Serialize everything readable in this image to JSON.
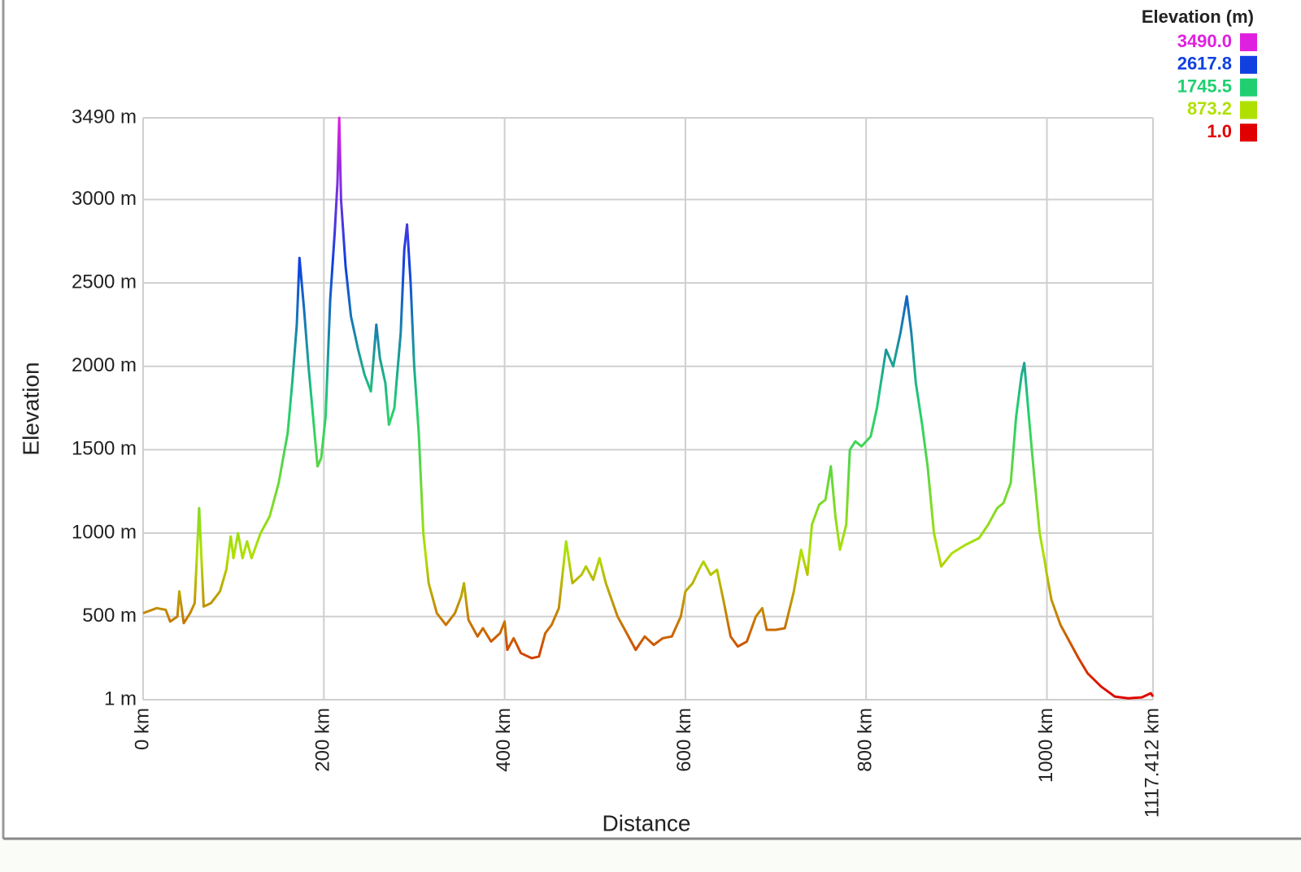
{
  "chart_data": {
    "type": "line",
    "x_label": "Distance",
    "y_label": "Elevation",
    "xlim": [
      0,
      1117.412
    ],
    "ylim": [
      1,
      3490
    ],
    "xticks": [
      {
        "value": 0,
        "label": "0 km"
      },
      {
        "value": 200,
        "label": "200 km"
      },
      {
        "value": 400,
        "label": "400 km"
      },
      {
        "value": 600,
        "label": "600 km"
      },
      {
        "value": 800,
        "label": "800 km"
      },
      {
        "value": 1000,
        "label": "1000 km"
      },
      {
        "value": 1117.412,
        "label": "1117.412 km"
      }
    ],
    "yticks": [
      {
        "value": 1,
        "label": "1 m"
      },
      {
        "value": 500,
        "label": "500 m"
      },
      {
        "value": 1000,
        "label": "1000 m"
      },
      {
        "value": 1500,
        "label": "1500 m"
      },
      {
        "value": 2000,
        "label": "2000 m"
      },
      {
        "value": 2500,
        "label": "2500 m"
      },
      {
        "value": 3000,
        "label": "3000 m"
      },
      {
        "value": 3490,
        "label": "3490 m"
      }
    ],
    "grid": true,
    "legend": {
      "title": "Elevation (m)",
      "position": "top-right",
      "entries": [
        {
          "value": 3490,
          "label": "3490.0",
          "color": "#e020e0"
        },
        {
          "value": 2617.8,
          "label": "2617.8",
          "color": "#1040e0"
        },
        {
          "value": 1745.5,
          "label": "1745.5",
          "color": "#20d070"
        },
        {
          "value": 873.2,
          "label": "873.2",
          "color": "#b0e000"
        },
        {
          "value": 1,
          "label": "1.0",
          "color": "#e00000"
        }
      ]
    },
    "x": [
      0,
      15,
      25,
      30,
      38,
      40,
      45,
      52,
      57,
      62,
      67,
      75,
      85,
      92,
      97,
      100,
      105,
      110,
      115,
      120,
      130,
      140,
      150,
      160,
      165,
      170,
      173,
      178,
      183,
      188,
      193,
      197,
      202,
      207,
      212,
      215,
      217,
      219,
      224,
      230,
      238,
      245,
      252,
      258,
      262,
      268,
      272,
      278,
      285,
      289,
      292,
      296,
      300,
      305,
      310,
      316,
      325,
      335,
      345,
      352,
      355,
      360,
      370,
      376,
      385,
      395,
      400,
      403,
      410,
      418,
      430,
      438,
      445,
      452,
      460,
      468,
      475,
      485,
      490,
      498,
      505,
      512,
      525,
      535,
      545,
      555,
      565,
      575,
      585,
      595,
      600,
      608,
      615,
      620,
      628,
      635,
      642,
      650,
      658,
      668,
      678,
      685,
      690,
      700,
      710,
      720,
      728,
      735,
      740,
      748,
      755,
      761,
      766,
      771,
      778,
      782,
      788,
      795,
      805,
      812,
      822,
      830,
      838,
      845,
      850,
      855,
      862,
      868,
      875,
      883,
      895,
      910,
      925,
      935,
      945,
      952,
      960,
      966,
      972,
      975,
      980,
      985,
      992,
      997,
      1000,
      1005,
      1015,
      1025,
      1035,
      1045,
      1060,
      1075,
      1090,
      1105,
      1115,
      1117.412
    ],
    "values": [
      520,
      550,
      540,
      470,
      500,
      650,
      460,
      520,
      580,
      1150,
      560,
      580,
      650,
      780,
      980,
      850,
      1000,
      850,
      950,
      850,
      1000,
      1100,
      1300,
      1600,
      1900,
      2250,
      2650,
      2350,
      2000,
      1700,
      1400,
      1450,
      1700,
      2400,
      2800,
      3100,
      3490,
      3000,
      2600,
      2300,
      2100,
      1950,
      1850,
      2250,
      2050,
      1900,
      1650,
      1750,
      2200,
      2700,
      2850,
      2500,
      2000,
      1600,
      1000,
      700,
      520,
      450,
      520,
      620,
      700,
      480,
      380,
      430,
      350,
      400,
      470,
      300,
      370,
      280,
      250,
      260,
      400,
      450,
      550,
      950,
      700,
      750,
      800,
      720,
      850,
      700,
      500,
      400,
      300,
      380,
      330,
      370,
      380,
      500,
      650,
      700,
      780,
      830,
      750,
      780,
      600,
      380,
      320,
      350,
      500,
      550,
      420,
      420,
      430,
      650,
      900,
      750,
      1050,
      1170,
      1200,
      1400,
      1100,
      900,
      1050,
      1500,
      1550,
      1520,
      1580,
      1750,
      2100,
      2000,
      2200,
      2420,
      2200,
      1900,
      1650,
      1400,
      1000,
      800,
      880,
      930,
      970,
      1050,
      1150,
      1180,
      1300,
      1700,
      1950,
      2020,
      1700,
      1400,
      1000,
      850,
      750,
      600,
      450,
      350,
      250,
      160,
      80,
      20,
      10,
      15,
      40,
      20
    ]
  }
}
